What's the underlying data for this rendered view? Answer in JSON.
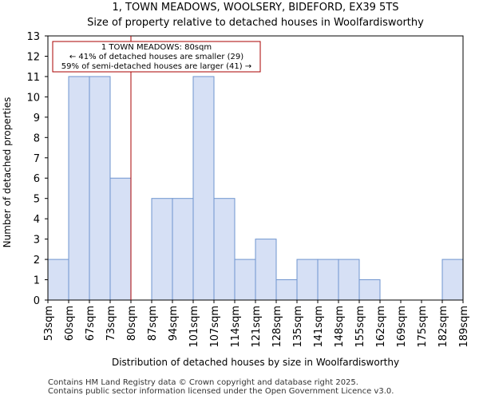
{
  "chart_data": {
    "type": "histogram",
    "title": "1, TOWN MEADOWS, WOOLSERY, BIDEFORD, EX39 5TS",
    "subtitle": "Size of property relative to detached houses in Woolfardisworthy",
    "xlabel": "Distribution of detached houses by size in Woolfardisworthy",
    "ylabel": "Number of detached properties",
    "categories": [
      "53sqm",
      "60sqm",
      "67sqm",
      "73sqm",
      "80sqm",
      "87sqm",
      "94sqm",
      "101sqm",
      "107sqm",
      "114sqm",
      "121sqm",
      "128sqm",
      "135sqm",
      "141sqm",
      "148sqm",
      "155sqm",
      "162sqm",
      "169sqm",
      "175sqm",
      "182sqm",
      "189sqm"
    ],
    "values": [
      2,
      11,
      11,
      6,
      0,
      5,
      5,
      11,
      5,
      2,
      3,
      1,
      2,
      2,
      2,
      1,
      0,
      0,
      0,
      2
    ],
    "ylim": [
      0,
      13
    ],
    "yticks": [
      0,
      1,
      2,
      3,
      4,
      5,
      6,
      7,
      8,
      9,
      10,
      11,
      12,
      13
    ],
    "marker": {
      "value_sqm": 80,
      "bin_position": 4.0,
      "color": "#aa0000",
      "annotation": {
        "line1": "1 TOWN MEADOWS: 80sqm",
        "line2": "← 41% of detached houses are smaller (29)",
        "line3": "59% of semi-detached houses are larger (41) →"
      }
    },
    "bar_fill": "#d6e0f5",
    "bar_stroke": "#6f95cf"
  },
  "footer": {
    "line1": "Contains HM Land Registry data © Crown copyright and database right 2025.",
    "line2": "Contains public sector information licensed under the Open Government Licence v3.0."
  }
}
